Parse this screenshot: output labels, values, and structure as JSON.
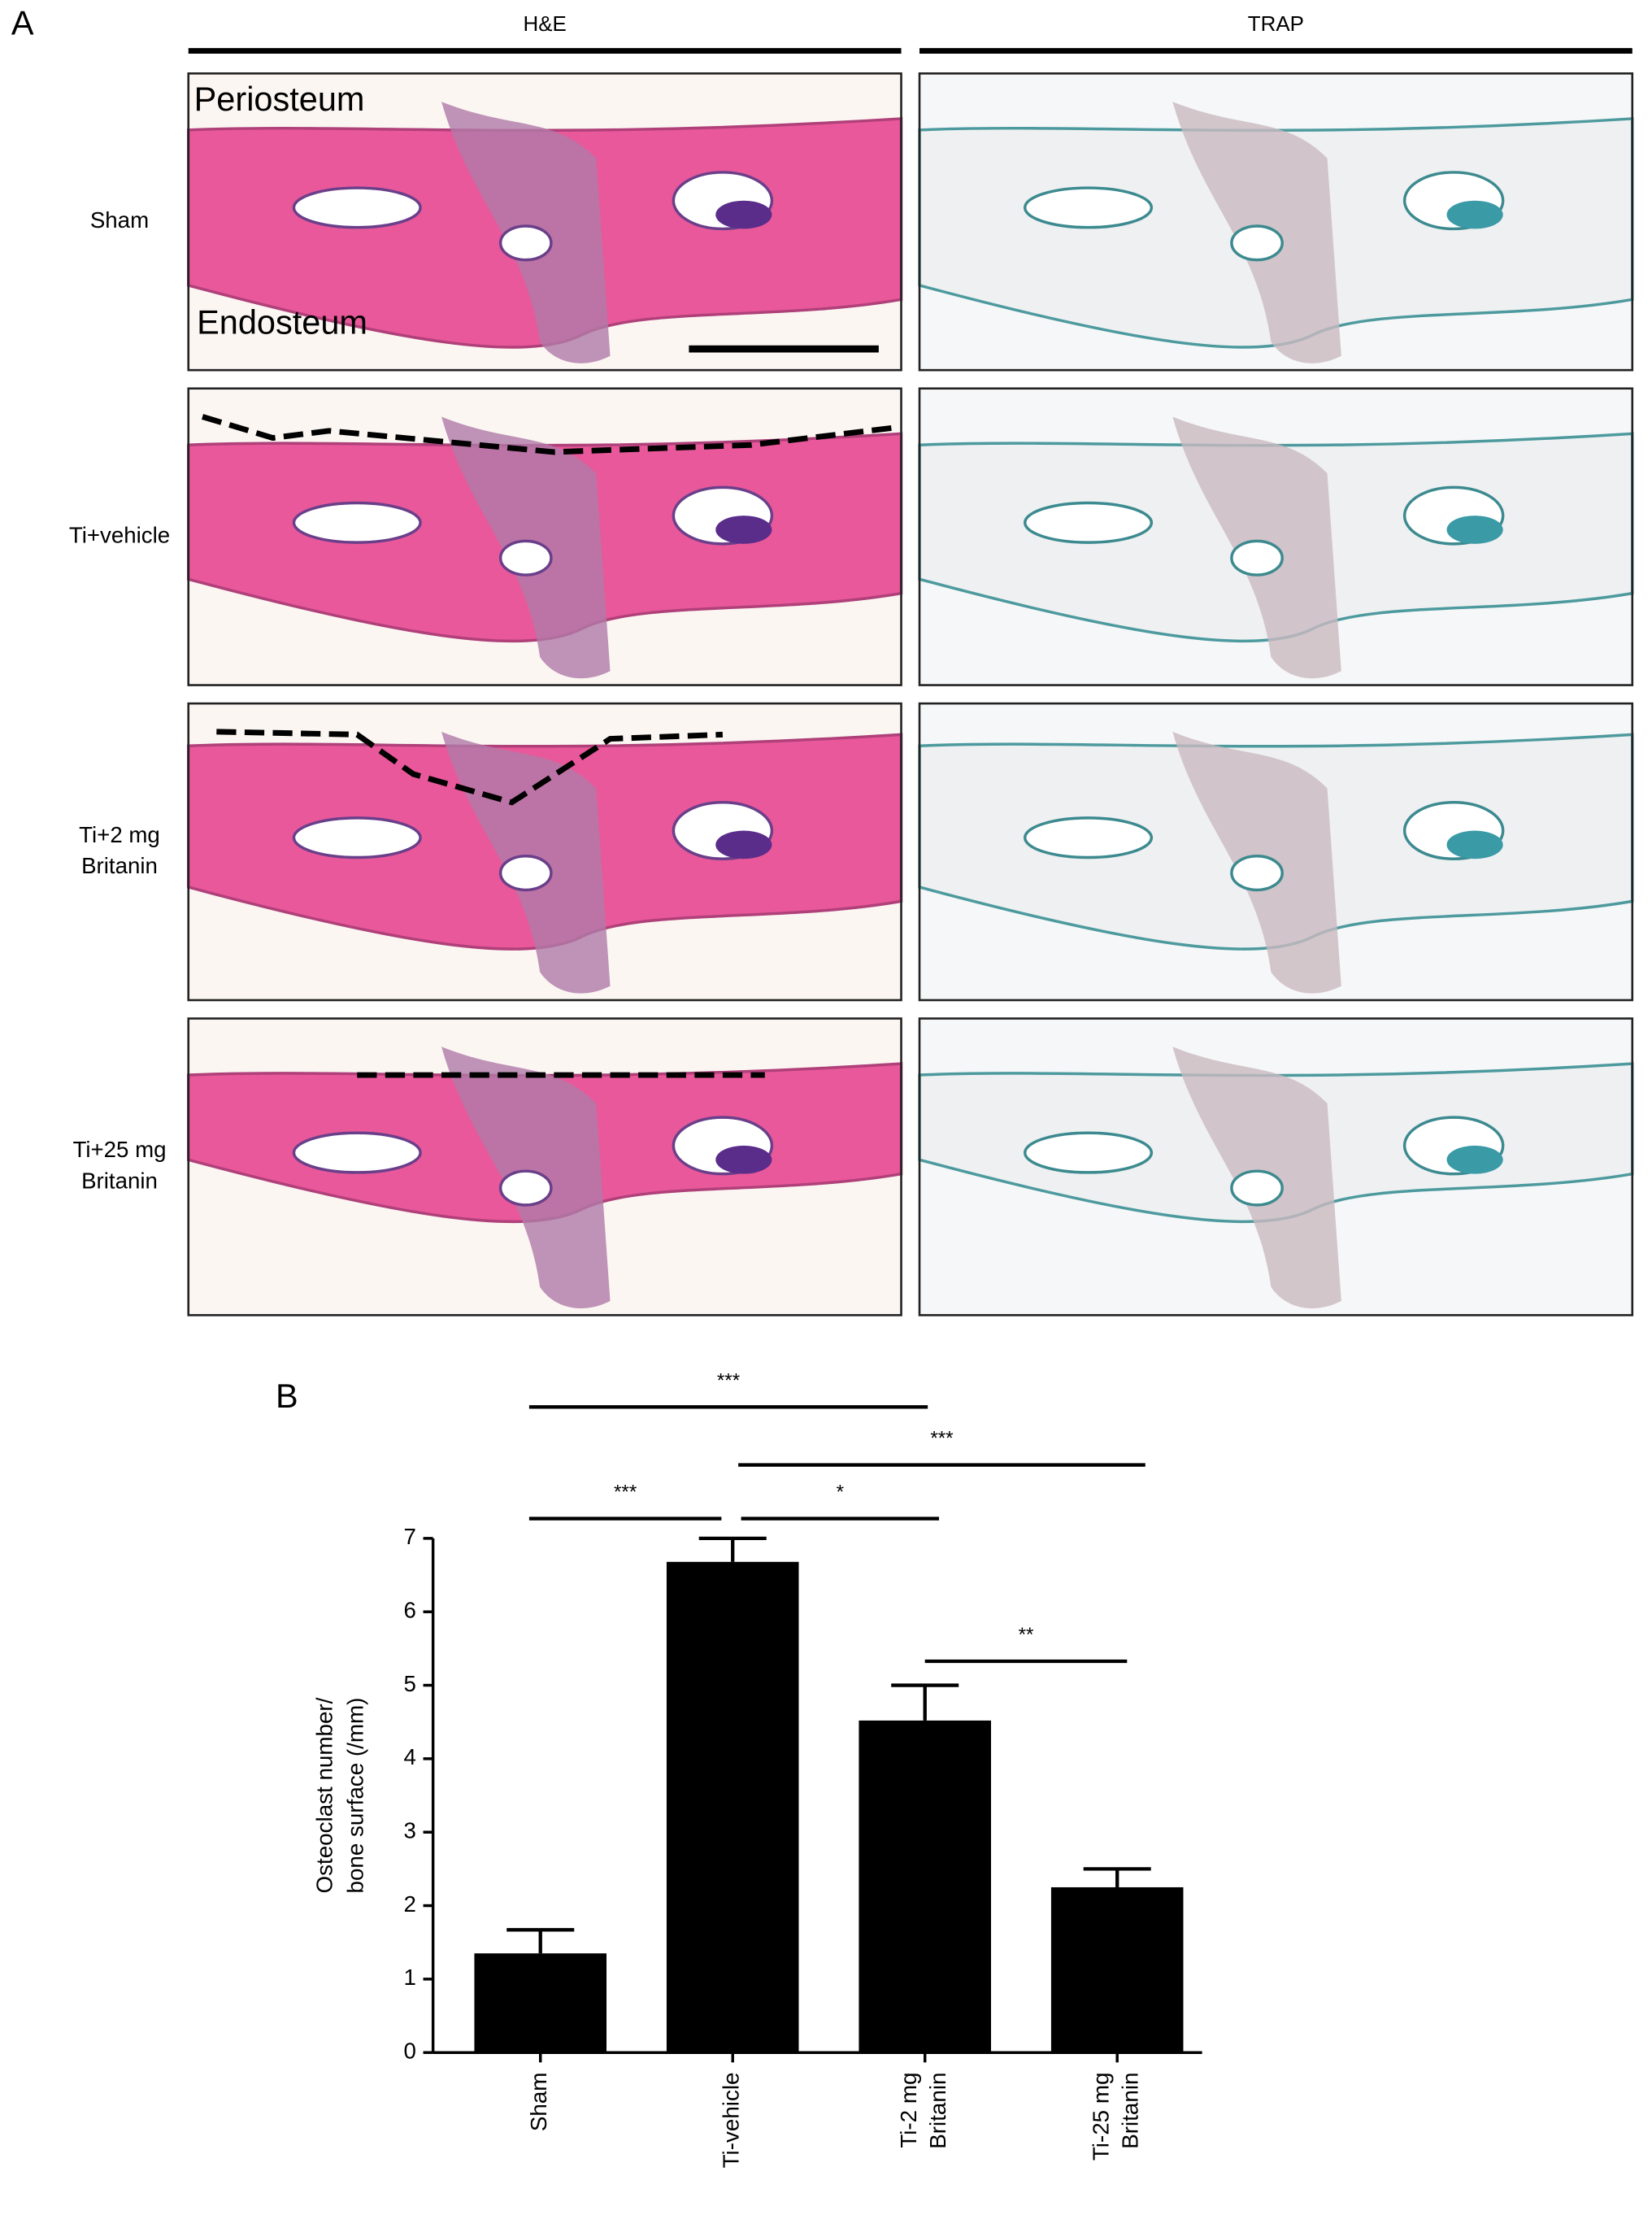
{
  "panel_a": {
    "label": "A",
    "columns": [
      "H&E",
      "TRAP"
    ],
    "rows": [
      [
        "Sham"
      ],
      [
        "Ti+vehicle"
      ],
      [
        "Ti+2 mg",
        "Britanin"
      ],
      [
        "Ti+25 mg",
        "Britanin"
      ]
    ],
    "insets": [
      "Periosteum",
      "Endosteum"
    ]
  },
  "panel_b": {
    "label": "B"
  },
  "chart_data": {
    "type": "bar",
    "y_label": [
      "Osteoclast number/",
      "bone surface (/mm)"
    ],
    "categories": [
      [
        "Sham"
      ],
      [
        "Ti-vehicle"
      ],
      [
        "Ti-2 mg",
        "Britanin"
      ],
      [
        "Ti-25 mg",
        "Britanin"
      ]
    ],
    "values": [
      1.35,
      6.68,
      4.52,
      2.25
    ],
    "errors": [
      0.32,
      0.32,
      0.48,
      0.25
    ],
    "color": "#000000",
    "ylim": [
      0,
      7
    ],
    "yticks": [
      0,
      1,
      2,
      3,
      4,
      5,
      6,
      7
    ],
    "annotations": [
      {
        "label": "***",
        "between": [
          0,
          2
        ]
      },
      {
        "label": "***",
        "between": [
          1,
          3
        ]
      },
      {
        "label": "***",
        "between": [
          0,
          1
        ]
      },
      {
        "label": "*",
        "between": [
          1,
          2
        ]
      },
      {
        "label": "**",
        "between": [
          2,
          3
        ]
      }
    ]
  }
}
